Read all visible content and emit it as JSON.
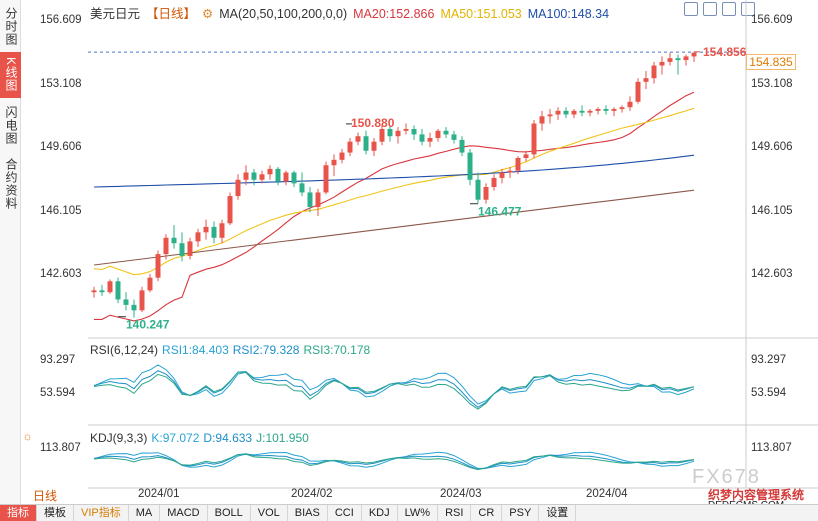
{
  "sidebar": {
    "tabs": [
      "分时图",
      "K线图",
      "闪电图",
      "合约资料"
    ],
    "active": 1
  },
  "header": {
    "symbol": "美元日元",
    "period_tag": "【日线】",
    "ma_label": "MA(20,50,100,200,0,0)",
    "ma20": "MA20:152.866",
    "ma50": "MA50:151.053",
    "ma100": "MA100:148.34"
  },
  "colors": {
    "up": "#e8534a",
    "down": "#2bb08a",
    "ma20": "#d9363e",
    "ma50": "#f0c419",
    "ma100": "#1f4fa8",
    "ma200": "#8b5a4a",
    "rsi1": "#27a3d3",
    "rsi2": "#1e8fc9",
    "rsi3": "#2aa788",
    "k": "#27a3d3",
    "d": "#1e8fc9",
    "j": "#2aa788"
  },
  "price_axis": {
    "ticks": [
      "156.609",
      "153.108",
      "149.606",
      "146.105",
      "142.603"
    ]
  },
  "current_price": "154.835",
  "annotations": {
    "high": "154.856",
    "peak_jan": "150.880",
    "low_mar": "146.477",
    "low_dec": "140.247"
  },
  "rsi": {
    "title": "RSI(6,12,24)",
    "rsi1": "RSI1:84.403",
    "rsi2": "RSI2:79.328",
    "rsi3": "RSI3:70.178",
    "ticks": [
      "93.297",
      "53.594"
    ]
  },
  "kdj": {
    "title": "KDJ(9,3,3)",
    "k": "K:97.072",
    "d": "D:94.633",
    "j": "J:101.950",
    "ticks": [
      "113.807"
    ]
  },
  "x_axis": {
    "labels": [
      "2024/01",
      "2024/02",
      "2024/03",
      "2024/04"
    ]
  },
  "period_button": "日线",
  "bottom_tabs": [
    "指标",
    "模板",
    "VIP指标",
    "MA",
    "MACD",
    "BOLL",
    "VOL",
    "BIAS",
    "CCI",
    "KDJ",
    "LW%",
    "RSI",
    "CR",
    "PSY",
    "设置"
  ],
  "watermark": {
    "logo": "FX678",
    "cn": "织梦内容管理系统",
    "en": "DEDECMS.COM"
  },
  "chart_data": {
    "type": "candlestick",
    "ylim": [
      139.5,
      157.0
    ],
    "candles": [
      [
        141.6,
        141.9,
        141.3,
        141.7
      ],
      [
        141.7,
        142.0,
        141.4,
        141.6
      ],
      [
        141.6,
        142.3,
        141.5,
        142.2
      ],
      [
        142.2,
        142.4,
        141.0,
        141.2
      ],
      [
        141.2,
        141.6,
        140.6,
        140.9
      ],
      [
        140.9,
        141.2,
        140.2,
        140.6
      ],
      [
        140.6,
        141.9,
        140.5,
        141.7
      ],
      [
        141.7,
        142.6,
        141.6,
        142.4
      ],
      [
        142.4,
        143.9,
        142.2,
        143.7
      ],
      [
        143.7,
        144.8,
        143.4,
        144.6
      ],
      [
        144.6,
        145.3,
        144.0,
        144.3
      ],
      [
        144.3,
        144.9,
        143.3,
        143.6
      ],
      [
        143.6,
        144.6,
        143.4,
        144.4
      ],
      [
        144.4,
        145.1,
        144.1,
        144.9
      ],
      [
        144.9,
        145.6,
        144.5,
        145.2
      ],
      [
        145.2,
        145.5,
        144.3,
        144.6
      ],
      [
        144.6,
        145.6,
        144.3,
        145.4
      ],
      [
        145.4,
        147.1,
        145.3,
        146.9
      ],
      [
        146.9,
        148.1,
        146.7,
        147.8
      ],
      [
        147.8,
        148.6,
        147.5,
        148.2
      ],
      [
        148.2,
        148.4,
        147.5,
        147.8
      ],
      [
        147.8,
        148.3,
        147.6,
        148.1
      ],
      [
        148.1,
        148.6,
        147.8,
        148.4
      ],
      [
        148.4,
        148.5,
        147.5,
        147.7
      ],
      [
        147.7,
        148.3,
        147.5,
        148.2
      ],
      [
        148.2,
        148.3,
        147.4,
        147.6
      ],
      [
        147.6,
        148.2,
        146.9,
        147.1
      ],
      [
        147.1,
        147.4,
        146.0,
        146.3
      ],
      [
        146.3,
        147.3,
        145.8,
        147.1
      ],
      [
        147.1,
        148.8,
        147.0,
        148.6
      ],
      [
        148.6,
        149.2,
        148.0,
        148.9
      ],
      [
        148.9,
        149.5,
        148.7,
        149.3
      ],
      [
        149.3,
        150.1,
        149.1,
        149.9
      ],
      [
        149.9,
        150.4,
        149.7,
        150.2
      ],
      [
        150.2,
        150.5,
        149.2,
        149.4
      ],
      [
        149.4,
        150.1,
        149.1,
        149.9
      ],
      [
        149.9,
        150.88,
        149.7,
        150.6
      ],
      [
        150.6,
        150.8,
        149.9,
        150.2
      ],
      [
        150.2,
        150.7,
        149.8,
        150.5
      ],
      [
        150.5,
        150.9,
        150.3,
        150.6
      ],
      [
        150.6,
        150.8,
        150.0,
        150.3
      ],
      [
        150.3,
        150.6,
        149.7,
        149.9
      ],
      [
        149.9,
        150.4,
        149.6,
        150.1
      ],
      [
        150.1,
        150.6,
        149.9,
        150.5
      ],
      [
        150.5,
        150.7,
        150.1,
        150.3
      ],
      [
        150.3,
        150.5,
        149.8,
        150.0
      ],
      [
        150.0,
        150.2,
        149.1,
        149.3
      ],
      [
        149.3,
        149.5,
        147.5,
        147.8
      ],
      [
        147.8,
        148.2,
        146.5,
        146.7
      ],
      [
        146.7,
        147.6,
        146.477,
        147.4
      ],
      [
        147.4,
        148.1,
        147.2,
        147.9
      ],
      [
        147.9,
        148.4,
        147.6,
        148.2
      ],
      [
        148.2,
        148.5,
        147.9,
        148.3
      ],
      [
        148.3,
        149.1,
        148.1,
        149.0
      ],
      [
        149.0,
        149.4,
        148.8,
        149.2
      ],
      [
        149.2,
        151.1,
        149.0,
        150.9
      ],
      [
        150.9,
        151.6,
        150.5,
        151.3
      ],
      [
        151.3,
        151.7,
        150.9,
        151.4
      ],
      [
        151.4,
        151.8,
        151.1,
        151.6
      ],
      [
        151.6,
        151.8,
        151.2,
        151.4
      ],
      [
        151.4,
        151.7,
        151.2,
        151.6
      ],
      [
        151.6,
        151.9,
        151.3,
        151.5
      ],
      [
        151.5,
        151.7,
        151.3,
        151.6
      ],
      [
        151.6,
        151.8,
        151.4,
        151.7
      ],
      [
        151.7,
        151.9,
        151.4,
        151.6
      ],
      [
        151.6,
        151.8,
        151.3,
        151.7
      ],
      [
        151.7,
        151.9,
        151.5,
        151.8
      ],
      [
        151.8,
        152.4,
        151.6,
        152.1
      ],
      [
        152.1,
        153.4,
        152.0,
        153.2
      ],
      [
        153.2,
        153.8,
        152.8,
        153.4
      ],
      [
        153.4,
        154.3,
        153.1,
        154.1
      ],
      [
        154.1,
        154.6,
        153.6,
        154.3
      ],
      [
        154.3,
        154.8,
        154.1,
        154.5
      ],
      [
        154.5,
        154.7,
        153.6,
        154.4
      ],
      [
        154.4,
        154.7,
        154.1,
        154.6
      ],
      [
        154.6,
        154.856,
        154.3,
        154.8
      ]
    ]
  }
}
